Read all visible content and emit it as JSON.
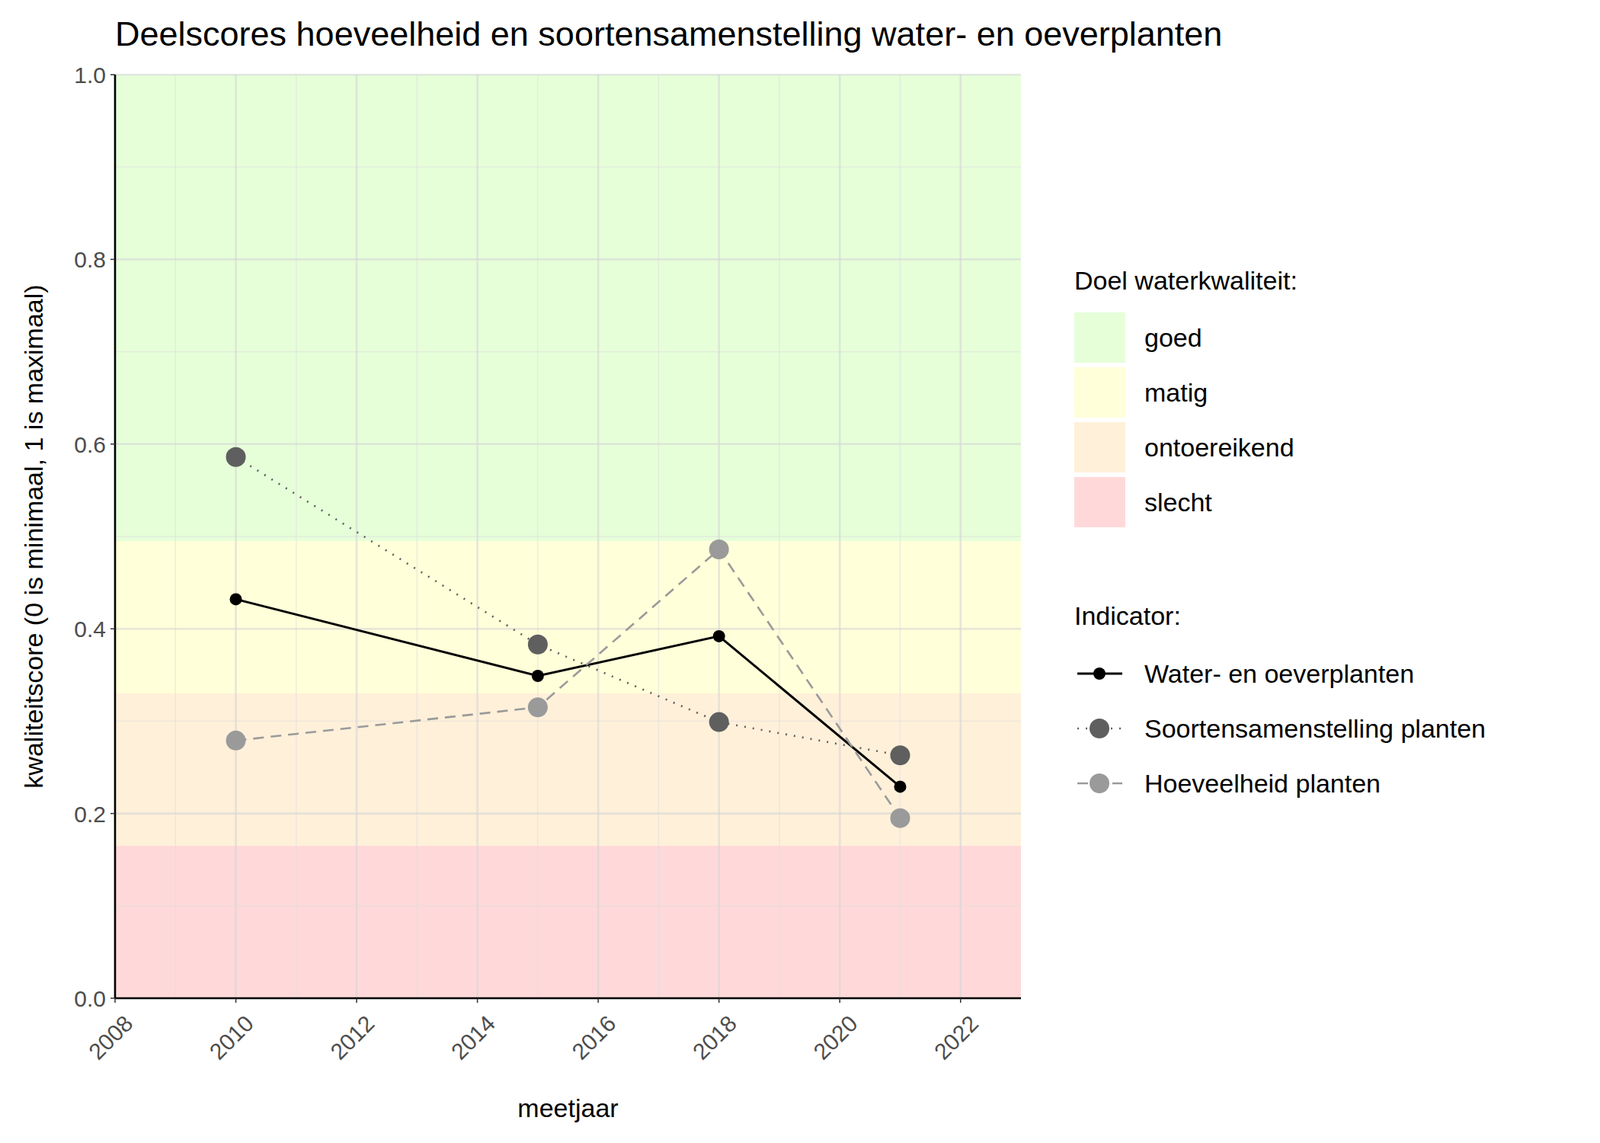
{
  "chart_data": {
    "type": "line",
    "title": "Deelscores hoeveelheid en soortensamenstelling water- en oeverplanten",
    "x_label": "meetjaar",
    "y_label": "kwaliteitscore (0 is minimaal, 1 is maximaal)",
    "x": [
      2010,
      2015,
      2018,
      2021
    ],
    "series": [
      {
        "name": "Water- en oeverplanten",
        "color": "#000000",
        "line_style": "solid",
        "marker": "circle",
        "values": [
          0.432,
          0.349,
          0.392,
          0.229
        ]
      },
      {
        "name": "Soortensamenstelling planten",
        "color": "#5f5f5f",
        "line_style": "dotted",
        "marker": "circle",
        "values": [
          0.586,
          0.383,
          0.299,
          0.263
        ]
      },
      {
        "name": "Hoeveelheid planten",
        "color": "#9a9a9a",
        "line_style": "dashed",
        "marker": "circle",
        "values": [
          0.279,
          0.315,
          0.486,
          0.195
        ]
      }
    ],
    "legend_title": "Indicator:",
    "bands_title": "Doel waterkwaliteit:",
    "bands": [
      {
        "name": "goed",
        "from": 0.495,
        "to": 1.0,
        "color": "#e6ffd9"
      },
      {
        "name": "matig",
        "from": 0.33,
        "to": 0.495,
        "color": "#ffffd9"
      },
      {
        "name": "ontoereikend",
        "from": 0.165,
        "to": 0.33,
        "color": "#fff0d9"
      },
      {
        "name": "slecht",
        "from": 0.0,
        "to": 0.165,
        "color": "#ffd9d9"
      }
    ],
    "xlim": [
      2008,
      2023
    ],
    "ylim": [
      0,
      1
    ],
    "xticks": [
      2008,
      2010,
      2012,
      2014,
      2016,
      2018,
      2020,
      2022
    ],
    "yticks": [
      {
        "value": 0,
        "label": "0.0"
      },
      0.2,
      0.4,
      0.6,
      0.8,
      {
        "value": 1,
        "label": "1.0"
      }
    ],
    "grid": true,
    "legend": "right"
  }
}
